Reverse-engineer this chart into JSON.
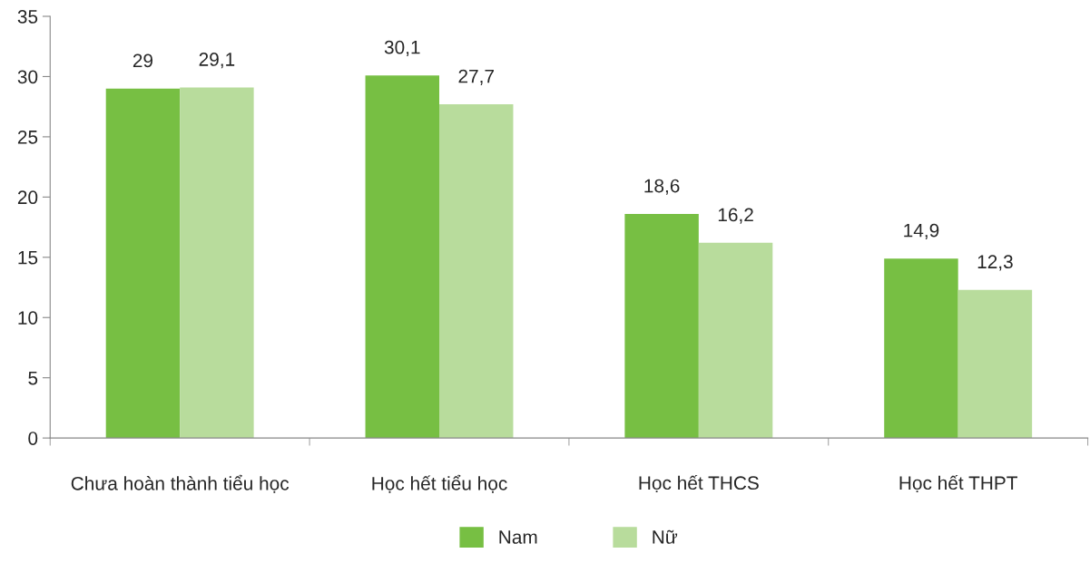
{
  "chart_data": {
    "type": "bar",
    "categories": [
      "Chưa hoàn thành tiểu học",
      "Học hết tiểu học",
      "Học hết THCS",
      "Học hết THPT"
    ],
    "series": [
      {
        "name": "Nam",
        "color": "#77bf43",
        "values": [
          29,
          30.1,
          18.6,
          14.9
        ],
        "value_labels": [
          "29",
          "30,1",
          "18,6",
          "14,9"
        ]
      },
      {
        "name": "Nữ",
        "color": "#b8dc9c",
        "values": [
          29.1,
          27.7,
          16.2,
          12.3
        ],
        "value_labels": [
          "29,1",
          "27,7",
          "16,2",
          "12,3"
        ]
      }
    ],
    "ylim": [
      0,
      35
    ],
    "yticks": [
      0,
      5,
      10,
      15,
      20,
      25,
      30,
      35
    ],
    "grid": false,
    "legend": "bottom"
  }
}
